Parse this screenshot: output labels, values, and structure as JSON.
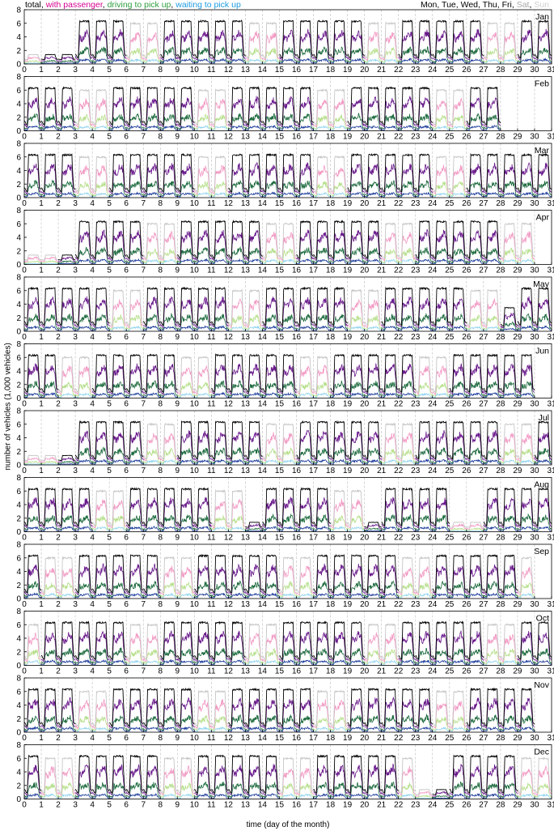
{
  "legend": {
    "categories": [
      {
        "label": "total",
        "color": "#000000"
      },
      {
        "label": "with passenger",
        "color": "#d4008f"
      },
      {
        "label": "driving to pick up",
        "color": "#2e9e3e"
      },
      {
        "label": "waiting to pick up",
        "color": "#1e9be0"
      }
    ],
    "weekdays": [
      {
        "label": "Mon",
        "color": "#000000"
      },
      {
        "label": "Tue",
        "color": "#000000"
      },
      {
        "label": "Wed",
        "color": "#000000"
      },
      {
        "label": "Thu",
        "color": "#000000"
      },
      {
        "label": "Fri",
        "color": "#000000"
      },
      {
        "label": "Sat",
        "color": "#a8a8a8"
      },
      {
        "label": "Sun",
        "color": "#cfcfcf"
      }
    ]
  },
  "colors": {
    "total_weekday": "#000000",
    "total_weekend": "#c6c6c6",
    "with_passenger_weekday": "#6a1a8c",
    "with_passenger_weekend": "#f29ac4",
    "driving_weekday": "#1d6b3e",
    "driving_weekend": "#b5df8a",
    "waiting_weekday": "#1a3a9a",
    "waiting_weekend": "#8fd3ee",
    "dashed_line": "#bcbcbc"
  },
  "chart_data": {
    "type": "line",
    "panel_type": "small-multiples",
    "xlabel": "time (day of the month)",
    "ylabel": "number of vehicles (1,000 vehicles)",
    "xlim": [
      0,
      31
    ],
    "ylim": [
      0,
      8
    ],
    "xticks": [
      0,
      1,
      2,
      3,
      4,
      5,
      6,
      7,
      8,
      9,
      10,
      11,
      12,
      13,
      14,
      15,
      16,
      17,
      18,
      19,
      20,
      21,
      22,
      23,
      24,
      25,
      26,
      27,
      28,
      29,
      30,
      31
    ],
    "yticks": [
      0,
      2,
      4,
      6,
      8
    ],
    "series_names": [
      "total",
      "with passenger",
      "driving to pick up",
      "waiting to pick up"
    ],
    "months": [
      {
        "name": "Jan",
        "days": 31,
        "first_weekday": 6,
        "low_days": [
          1,
          2,
          3
        ],
        "partial_days": []
      },
      {
        "name": "Feb",
        "days": 28,
        "first_weekday": 2,
        "low_days": [],
        "partial_days": []
      },
      {
        "name": "Mar",
        "days": 31,
        "first_weekday": 2,
        "low_days": [],
        "partial_days": []
      },
      {
        "name": "Apr",
        "days": 30,
        "first_weekday": 5,
        "low_days": [
          1,
          2,
          3
        ],
        "partial_days": []
      },
      {
        "name": "May",
        "days": 31,
        "first_weekday": 0,
        "low_days": [],
        "partial_days": [
          29
        ]
      },
      {
        "name": "Jun",
        "days": 30,
        "first_weekday": 3,
        "low_days": [],
        "partial_days": []
      },
      {
        "name": "Jul",
        "days": 31,
        "first_weekday": 5,
        "low_days": [
          1,
          2,
          3
        ],
        "partial_days": []
      },
      {
        "name": "Aug",
        "days": 31,
        "first_weekday": 1,
        "low_days": [
          14,
          21,
          26,
          27
        ],
        "partial_days": []
      },
      {
        "name": "Sep",
        "days": 30,
        "first_weekday": 4,
        "low_days": [],
        "partial_days": []
      },
      {
        "name": "Oct",
        "days": 31,
        "first_weekday": 6,
        "low_days": [],
        "partial_days": []
      },
      {
        "name": "Nov",
        "days": 30,
        "first_weekday": 2,
        "low_days": [],
        "partial_days": []
      },
      {
        "name": "Dec",
        "days": 31,
        "first_weekday": 4,
        "low_days": [
          24,
          25
        ],
        "partial_days": []
      }
    ],
    "typical_peak": {
      "total": 6.3,
      "with_passenger": 4.3,
      "driving_to_pick_up": 2.0,
      "waiting_to_pick_up": 0.6
    },
    "typical_night": {
      "total": 0.6,
      "with_passenger": 0.4,
      "driving_to_pick_up": 0.2,
      "waiting_to_pick_up": 0.1
    },
    "grid": false
  }
}
